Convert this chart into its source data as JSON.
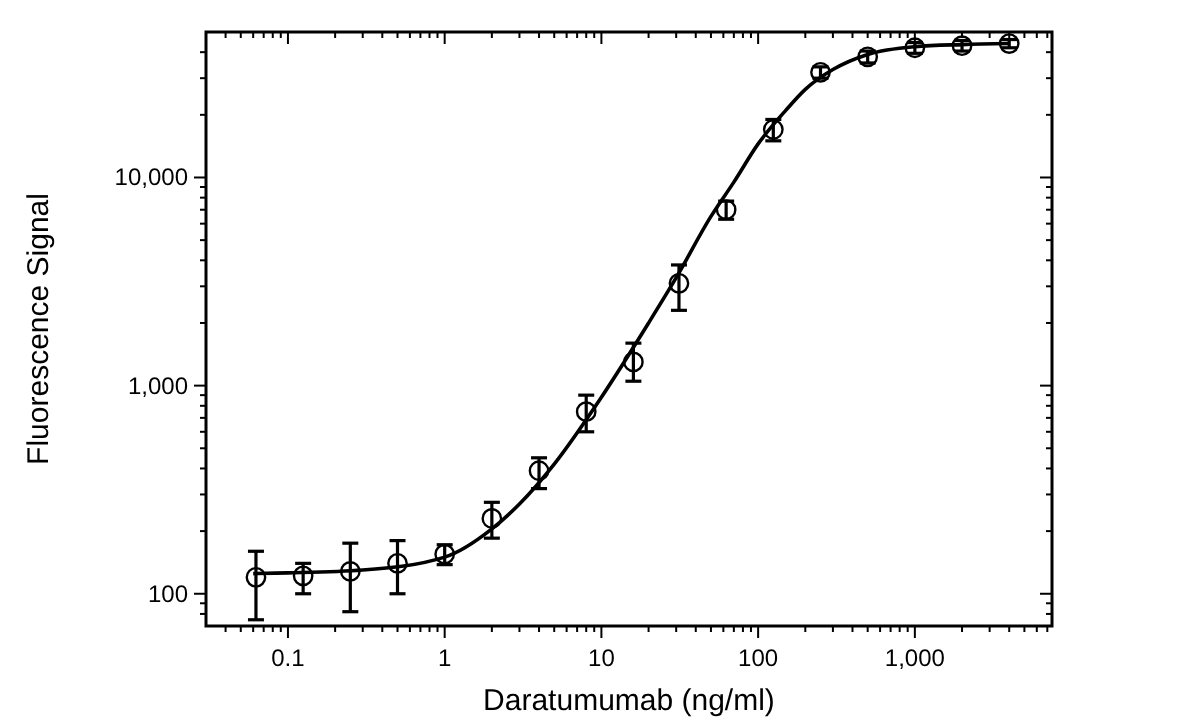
{
  "chart_data": {
    "type": "scatter",
    "xlabel": "Daratumumab (ng/ml)",
    "ylabel": "Fluorescence Signal",
    "log": "xy",
    "marker": "circle",
    "grid": false,
    "xlim": [
      0.03,
      7500
    ],
    "ylim": [
      70,
      50000
    ],
    "xticks": [
      {
        "value": 0.04,
        "label": null
      },
      {
        "value": 0.05,
        "label": null
      },
      {
        "value": 0.06,
        "label": null
      },
      {
        "value": 0.07,
        "label": null
      },
      {
        "value": 0.08,
        "label": null
      },
      {
        "value": 0.09,
        "label": null
      },
      0.1,
      {
        "value": 0.2,
        "label": null
      },
      {
        "value": 0.3,
        "label": null
      },
      {
        "value": 0.4,
        "label": null
      },
      {
        "value": 0.5,
        "label": null
      },
      {
        "value": 0.6,
        "label": null
      },
      {
        "value": 0.7,
        "label": null
      },
      {
        "value": 0.8,
        "label": null
      },
      {
        "value": 0.9,
        "label": null
      },
      1,
      {
        "value": 2,
        "label": null
      },
      {
        "value": 3,
        "label": null
      },
      {
        "value": 4,
        "label": null
      },
      {
        "value": 5,
        "label": null
      },
      {
        "value": 6,
        "label": null
      },
      {
        "value": 7,
        "label": null
      },
      {
        "value": 8,
        "label": null
      },
      {
        "value": 9,
        "label": null
      },
      10,
      {
        "value": 20,
        "label": null
      },
      {
        "value": 30,
        "label": null
      },
      {
        "value": 40,
        "label": null
      },
      {
        "value": 50,
        "label": null
      },
      {
        "value": 60,
        "label": null
      },
      {
        "value": 70,
        "label": null
      },
      {
        "value": 80,
        "label": null
      },
      {
        "value": 90,
        "label": null
      },
      100,
      {
        "value": 200,
        "label": null
      },
      {
        "value": 300,
        "label": null
      },
      {
        "value": 400,
        "label": null
      },
      {
        "value": 500,
        "label": null
      },
      {
        "value": 600,
        "label": null
      },
      {
        "value": 700,
        "label": null
      },
      {
        "value": 800,
        "label": null
      },
      {
        "value": 900,
        "label": null
      },
      {
        "value": 1000,
        "label": "1,000"
      },
      {
        "value": 2000,
        "label": null
      },
      {
        "value": 3000,
        "label": null
      },
      {
        "value": 4000,
        "label": null
      },
      {
        "value": 5000,
        "label": null
      },
      {
        "value": 6000,
        "label": null
      },
      {
        "value": 7000,
        "label": null
      }
    ],
    "yticks": [
      {
        "value": 80,
        "label": null
      },
      {
        "value": 90,
        "label": null
      },
      100,
      {
        "value": 200,
        "label": null
      },
      {
        "value": 300,
        "label": null
      },
      {
        "value": 400,
        "label": null
      },
      {
        "value": 500,
        "label": null
      },
      {
        "value": 600,
        "label": null
      },
      {
        "value": 700,
        "label": null
      },
      {
        "value": 800,
        "label": null
      },
      {
        "value": 900,
        "label": null
      },
      {
        "value": 1000,
        "label": "1,000"
      },
      {
        "value": 2000,
        "label": null
      },
      {
        "value": 3000,
        "label": null
      },
      {
        "value": 4000,
        "label": null
      },
      {
        "value": 5000,
        "label": null
      },
      {
        "value": 6000,
        "label": null
      },
      {
        "value": 7000,
        "label": null
      },
      {
        "value": 8000,
        "label": null
      },
      {
        "value": 9000,
        "label": null
      },
      {
        "value": 10000,
        "label": "10,000"
      },
      {
        "value": 20000,
        "label": null
      },
      {
        "value": 30000,
        "label": null
      },
      {
        "value": 40000,
        "label": null
      }
    ],
    "series": [
      {
        "type": "line",
        "color": "#000000",
        "marker": "none",
        "x": [
          0.06,
          0.1,
          0.3,
          1,
          2,
          3,
          5,
          10,
          20,
          30,
          50,
          70,
          100,
          150,
          200,
          300,
          500,
          1000,
          2000,
          4000
        ],
        "values": [
          125,
          126,
          130,
          150,
          205,
          270,
          420,
          880,
          2000,
          3300,
          6500,
          9500,
          14500,
          21000,
          26500,
          33000,
          39000,
          42500,
          43500,
          44000
        ]
      },
      {
        "color": "#000000",
        "x": [
          0.0625,
          0.125,
          0.25,
          0.5,
          1,
          2,
          4,
          8,
          16,
          31.25,
          62.5,
          125,
          250,
          500,
          1000,
          2000,
          4000
        ],
        "values": [
          120,
          122,
          128,
          140,
          155,
          230,
          390,
          750,
          1300,
          3100,
          7000,
          17000,
          32000,
          38000,
          42000,
          43000,
          44000
        ],
        "errors": [
          [
            75,
            160
          ],
          [
            100,
            140
          ],
          [
            82,
            175
          ],
          [
            100,
            180
          ],
          [
            138,
            172
          ],
          [
            185,
            275
          ],
          [
            320,
            450
          ],
          [
            600,
            900
          ],
          [
            1050,
            1600
          ],
          [
            2300,
            3800
          ],
          [
            6300,
            7700
          ],
          [
            15000,
            19000
          ],
          [
            30000,
            34000
          ],
          [
            35500,
            40500
          ],
          [
            39500,
            44500
          ],
          [
            40500,
            45500
          ],
          [
            42000,
            46000
          ]
        ]
      }
    ]
  }
}
